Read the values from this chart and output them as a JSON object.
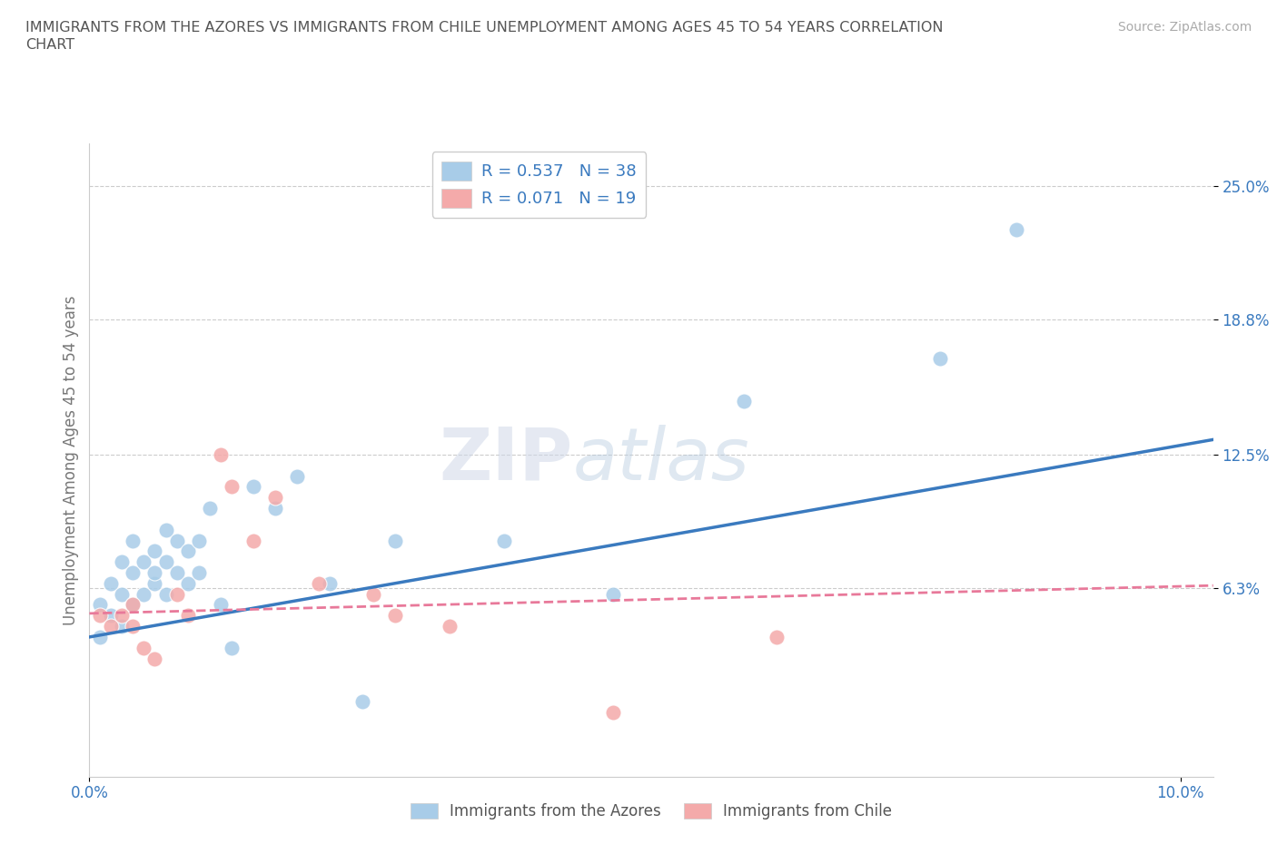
{
  "title_line1": "IMMIGRANTS FROM THE AZORES VS IMMIGRANTS FROM CHILE UNEMPLOYMENT AMONG AGES 45 TO 54 YEARS CORRELATION",
  "title_line2": "CHART",
  "source": "Source: ZipAtlas.com",
  "ylabel": "Unemployment Among Ages 45 to 54 years",
  "xlim": [
    0.0,
    0.103
  ],
  "ylim": [
    -0.025,
    0.27
  ],
  "yticks": [
    0.063,
    0.125,
    0.188,
    0.25
  ],
  "ytick_labels": [
    "6.3%",
    "12.5%",
    "18.8%",
    "25.0%"
  ],
  "xticks": [
    0.0,
    0.1
  ],
  "xtick_labels": [
    "0.0%",
    "10.0%"
  ],
  "watermark_zip": "ZIP",
  "watermark_atlas": "atlas",
  "azores_color": "#a8cce8",
  "chile_color": "#f4aaaa",
  "azores_line_color": "#3a7abf",
  "chile_line_color": "#e8799a",
  "legend_r_azores": "0.537",
  "legend_n_azores": "38",
  "legend_r_chile": "0.071",
  "legend_n_chile": "19",
  "azores_x": [
    0.001,
    0.001,
    0.002,
    0.002,
    0.003,
    0.003,
    0.003,
    0.004,
    0.004,
    0.004,
    0.005,
    0.005,
    0.006,
    0.006,
    0.006,
    0.007,
    0.007,
    0.007,
    0.008,
    0.008,
    0.009,
    0.009,
    0.01,
    0.01,
    0.011,
    0.012,
    0.013,
    0.015,
    0.017,
    0.019,
    0.022,
    0.025,
    0.028,
    0.038,
    0.048,
    0.06,
    0.078,
    0.085
  ],
  "azores_y": [
    0.04,
    0.055,
    0.05,
    0.065,
    0.045,
    0.06,
    0.075,
    0.055,
    0.07,
    0.085,
    0.06,
    0.075,
    0.065,
    0.07,
    0.08,
    0.06,
    0.075,
    0.09,
    0.07,
    0.085,
    0.065,
    0.08,
    0.07,
    0.085,
    0.1,
    0.055,
    0.035,
    0.11,
    0.1,
    0.115,
    0.065,
    0.01,
    0.085,
    0.085,
    0.06,
    0.15,
    0.17,
    0.23
  ],
  "chile_x": [
    0.001,
    0.002,
    0.003,
    0.004,
    0.004,
    0.005,
    0.006,
    0.008,
    0.009,
    0.012,
    0.013,
    0.015,
    0.017,
    0.021,
    0.026,
    0.028,
    0.033,
    0.048,
    0.063
  ],
  "chile_y": [
    0.05,
    0.045,
    0.05,
    0.045,
    0.055,
    0.035,
    0.03,
    0.06,
    0.05,
    0.125,
    0.11,
    0.085,
    0.105,
    0.065,
    0.06,
    0.05,
    0.045,
    0.005,
    0.04
  ],
  "azores_trend_x": [
    0.0,
    0.103
  ],
  "azores_trend_y": [
    0.04,
    0.132
  ],
  "chile_trend_x": [
    0.0,
    0.103
  ],
  "chile_trend_y": [
    0.051,
    0.064
  ]
}
